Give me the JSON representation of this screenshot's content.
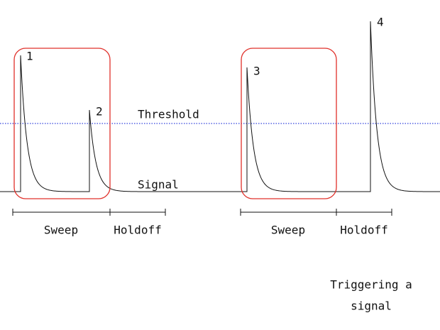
{
  "peaks": [
    {
      "label": "1"
    },
    {
      "label": "2"
    },
    {
      "label": "3"
    },
    {
      "label": "4"
    }
  ],
  "lines": {
    "threshold": "Threshold",
    "signal": "Signal"
  },
  "timeline": [
    {
      "sweep": "Sweep",
      "holdoff": "Holdoff"
    },
    {
      "sweep": "Sweep",
      "holdoff": "Holdoff"
    }
  ],
  "caption": [
    "Triggering a",
    "signal"
  ]
}
